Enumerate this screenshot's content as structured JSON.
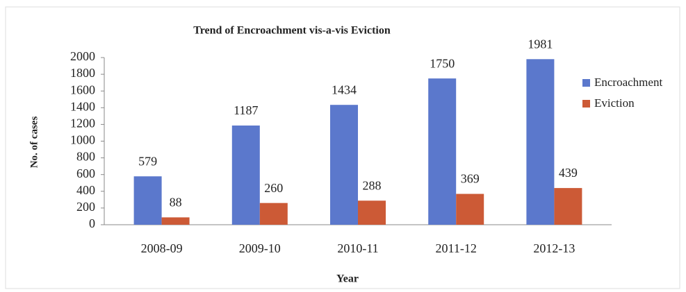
{
  "chart_data": {
    "type": "bar",
    "title": "Trend of Encroachment vis-a-vis Eviction",
    "xlabel": "Year",
    "ylabel": "No. of cases",
    "categories": [
      "2008-09",
      "2009-10",
      "2010-11",
      "2011-12",
      "2012-13"
    ],
    "series": [
      {
        "name": "Encroachment",
        "color": "#5b78cc",
        "values": [
          579,
          1187,
          1434,
          1750,
          1981
        ]
      },
      {
        "name": "Eviction",
        "color": "#cc5a36",
        "values": [
          88,
          260,
          288,
          369,
          439
        ]
      }
    ],
    "ylim": [
      0,
      2000
    ],
    "yticks": [
      0,
      200,
      400,
      600,
      800,
      1000,
      1200,
      1400,
      1600,
      1800,
      2000
    ],
    "grid": false,
    "legend": "right"
  }
}
